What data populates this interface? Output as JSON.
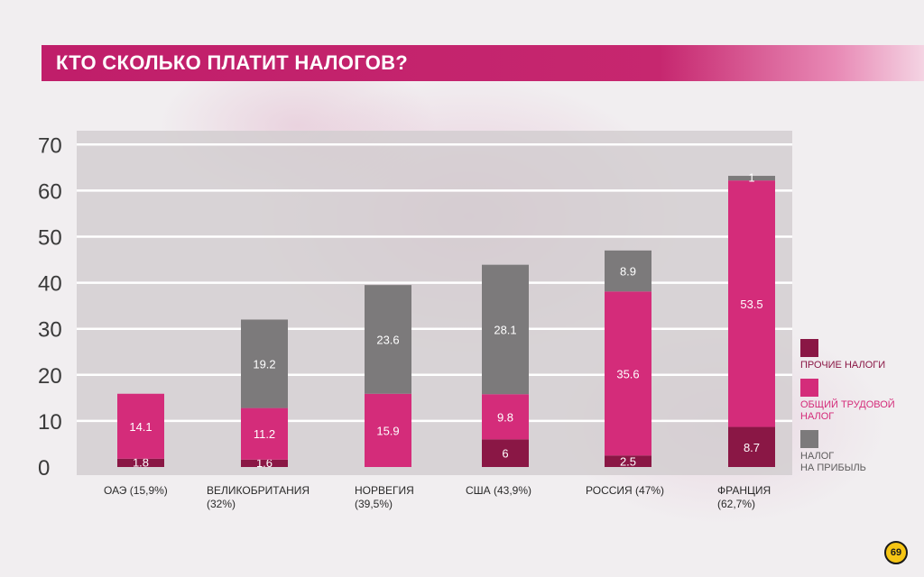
{
  "title": "КТО СКОЛЬКО ПЛАТИТ НАЛОГОВ?",
  "logo_text": "69",
  "colors": {
    "title_bar": "#c01e6a",
    "other_taxes": "#8a1745",
    "labor_tax": "#d42c7a",
    "profit_tax": "#7c7a7b",
    "axis_text": "#3a3a3a"
  },
  "chart_data": {
    "type": "bar",
    "stacked": true,
    "title": "КТО СКОЛЬКО ПЛАТИТ НАЛОГОВ?",
    "xlabel": "",
    "ylabel": "",
    "ylim": [
      0,
      70
    ],
    "yticks": [
      "0",
      "10",
      "20",
      "30",
      "40",
      "50",
      "60",
      "70"
    ],
    "grid": true,
    "legend_position": "right",
    "categories": [
      "ОАЭ (15,9%)",
      "ВЕЛИКОБРИТАНИЯ\n(32%)",
      "НОРВЕГИЯ\n(39,5%)",
      "США (43,9%)",
      "РОССИЯ (47%)",
      "ФРАНЦИЯ\n(62,7%)"
    ],
    "series": [
      {
        "name": "ПРОЧИЕ НАЛОГИ",
        "color": "#8a1745",
        "values": [
          1.8,
          1.6,
          null,
          6,
          2.5,
          8.7
        ],
        "labels": [
          "1.8",
          "1.6",
          "",
          "6",
          "2.5",
          "8.7"
        ]
      },
      {
        "name": "ОБЩИЙ ТРУДОВОЙ\nНАЛОГ",
        "color": "#d42c7a",
        "values": [
          14.1,
          11.2,
          15.9,
          9.8,
          35.6,
          53.5
        ],
        "labels": [
          "14.1",
          "11.2",
          "15.9",
          "9.8",
          "35.6",
          "53.5"
        ]
      },
      {
        "name": "НАЛОГ\nНА ПРИБЫЛЬ",
        "color": "#7c7a7b",
        "values": [
          null,
          19.2,
          23.6,
          28.1,
          8.9,
          1
        ],
        "labels": [
          "",
          "19.2",
          "23.6",
          "28.1",
          "8.9",
          "1"
        ]
      }
    ]
  }
}
